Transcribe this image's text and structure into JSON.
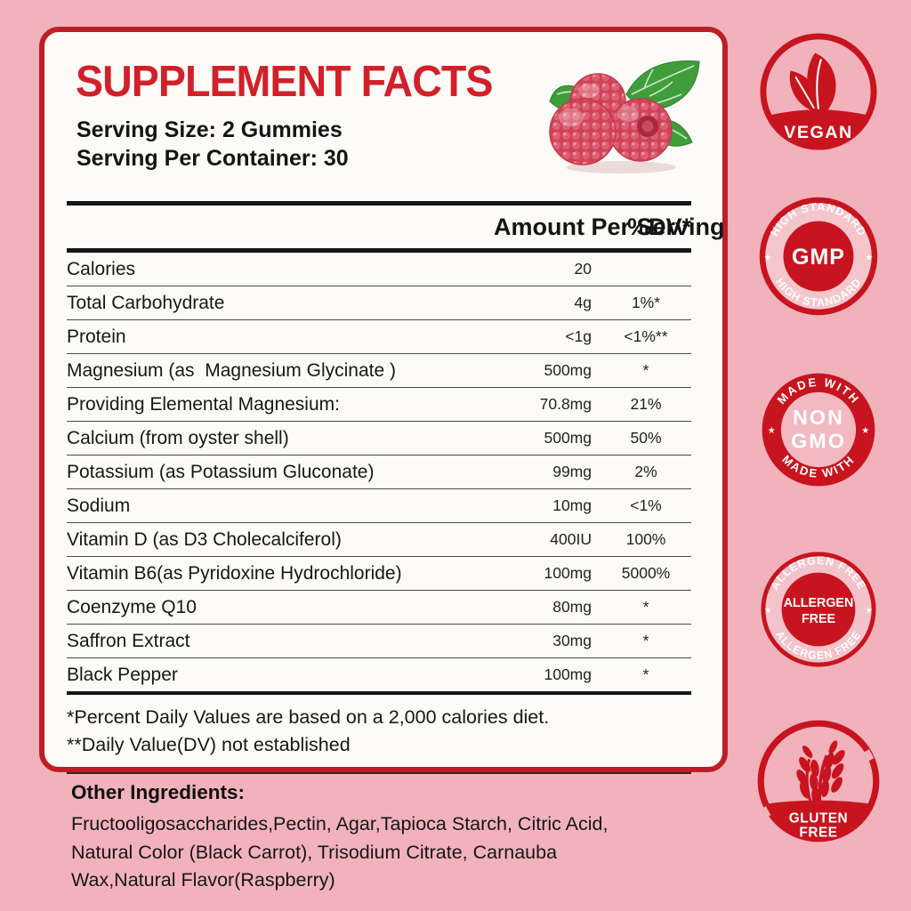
{
  "panel": {
    "title": "SUPPLEMENT FACTS",
    "serving_size": "Serving Size: 2 Gummies",
    "serving_per_container": "Serving Per Container: 30",
    "table": {
      "col_amount": "Amount Per Serving",
      "col_dv": "%DV*",
      "rows": [
        {
          "label": "Calories",
          "amount": "20",
          "dv": ""
        },
        {
          "label": "Total Carbohydrate",
          "amount": "4g",
          "dv": "1%*"
        },
        {
          "label": "Protein",
          "amount": "<1g",
          "dv": "<1%**"
        },
        {
          "label": "Magnesium (as  Magnesium Glycinate )",
          "amount": "500mg",
          "dv": "*"
        },
        {
          "label": "Providing Elemental Magnesium:",
          "amount": "70.8mg",
          "dv": "21%"
        },
        {
          "label": "Calcium (from oyster shell)",
          "amount": "500mg",
          "dv": "50%"
        },
        {
          "label": "Potassium (as Potassium Gluconate)",
          "amount": "99mg",
          "dv": "2%"
        },
        {
          "label": "Sodium",
          "amount": "10mg",
          "dv": "<1%"
        },
        {
          "label": "Vitamin D (as D3 Cholecalciferol)",
          "amount": "400IU",
          "dv": "100%"
        },
        {
          "label": "Vitamin B6(as Pyridoxine Hydrochloride)",
          "amount": "100mg",
          "dv": "5000%"
        },
        {
          "label": "Coenzyme Q10",
          "amount": "80mg",
          "dv": "*"
        },
        {
          "label": "Saffron Extract",
          "amount": "30mg",
          "dv": "*"
        },
        {
          "label": "Black Pepper",
          "amount": "100mg",
          "dv": "*"
        }
      ]
    },
    "footnotes": [
      "*Percent Daily Values are based on a 2,000 calories diet.",
      "**Daily Value(DV) not established"
    ]
  },
  "other_ingredients": {
    "heading": "Other Ingredients:",
    "lines": [
      "Fructooligosaccharides,Pectin, Agar,Tapioca Starch, Citric Acid,",
      "Natural Color (Black Carrot), Trisodium Citrate, Carnauba",
      "Wax,Natural Flavor(Raspberry)"
    ]
  },
  "badges": {
    "vegan": {
      "label": "VEGAN"
    },
    "gmp": {
      "center": "GMP",
      "arc_top": "HIGH STANDARD",
      "arc_bottom": "HIGH STANDARD",
      "star_left": "★",
      "star_right": "★"
    },
    "non_gmo": {
      "line1": "NON",
      "line2": "GMO",
      "arc_top": "MADE WITH",
      "arc_bottom": "MADE WITH",
      "star_left": "★",
      "star_right": "★"
    },
    "allergen_free": {
      "line1": "ALLERGEN",
      "line2": "FREE",
      "arc_top": "ALLERGEN FREE",
      "arc_bottom": "ALLERGEN FREE",
      "star_left": "★",
      "star_right": "★"
    },
    "gluten_free": {
      "line1": "GLUTEN",
      "line2": "FREE"
    }
  },
  "colors": {
    "accent_red": "#c8141f",
    "border_red": "#bf1d26",
    "title_red": "#d2202a",
    "background_pink": "#f2b2bc",
    "panel_bg": "#fdfbf7",
    "text_dark": "#171717"
  }
}
